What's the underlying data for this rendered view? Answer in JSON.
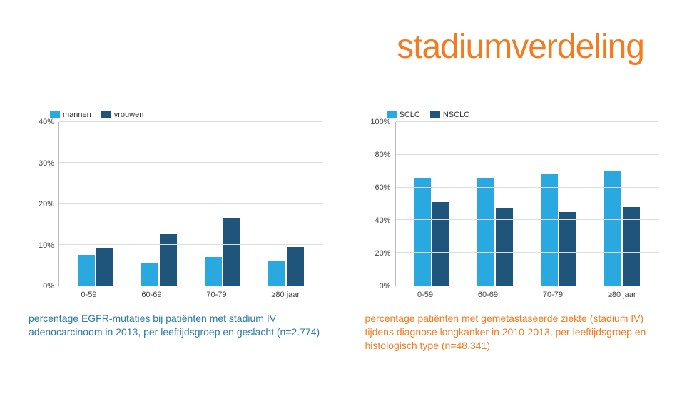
{
  "title": "stadiumverdeling",
  "title_color": "#f47b20",
  "background_color": "#ffffff",
  "grid_color": "#dcdcdc",
  "axis_color": "#bbbbbb",
  "axis_font_size": 11,
  "caption_font_size": 14,
  "chart_left": {
    "type": "bar",
    "legend": [
      {
        "label": "mannen",
        "color": "#2aa8e0"
      },
      {
        "label": "vrouwen",
        "color": "#1f557a"
      }
    ],
    "categories": [
      "0-59",
      "60-69",
      "70-79",
      "≥80 jaar"
    ],
    "series": [
      {
        "name": "mannen",
        "color": "#2aa8e0",
        "values": [
          7.5,
          5.5,
          7.0,
          6.0
        ]
      },
      {
        "name": "vrouwen",
        "color": "#1f557a",
        "values": [
          9.0,
          12.5,
          16.5,
          9.5
        ]
      }
    ],
    "ylim": [
      0,
      40
    ],
    "ytick_step": 10,
    "ytick_suffix": "%",
    "caption": "percentage EGFR-mutaties bij patiënten met stadium IV adenocarcinoom in 2013, per leeftijdsgroep en geslacht (n=2.774)",
    "caption_color": "#2a7aa8"
  },
  "chart_right": {
    "type": "bar",
    "legend": [
      {
        "label": "SCLC",
        "color": "#2aa8e0"
      },
      {
        "label": "NSCLC",
        "color": "#1f557a"
      }
    ],
    "categories": [
      "0-59",
      "60-69",
      "70-79",
      "≥80 jaar"
    ],
    "series": [
      {
        "name": "SCLC",
        "color": "#2aa8e0",
        "values": [
          66,
          66,
          68,
          70
        ]
      },
      {
        "name": "NSCLC",
        "color": "#1f557a",
        "values": [
          51,
          47,
          45,
          48
        ]
      }
    ],
    "ylim": [
      0,
      100
    ],
    "ytick_step": 20,
    "ytick_suffix": "%",
    "caption": "percentage patiënten met gemetastaseerde ziekte (stadium IV) tijdens diagnose longkanker in 2010-2013, per leeftijdsgroep en histologisch type (n=48.341)",
    "caption_color": "#f47b20"
  }
}
